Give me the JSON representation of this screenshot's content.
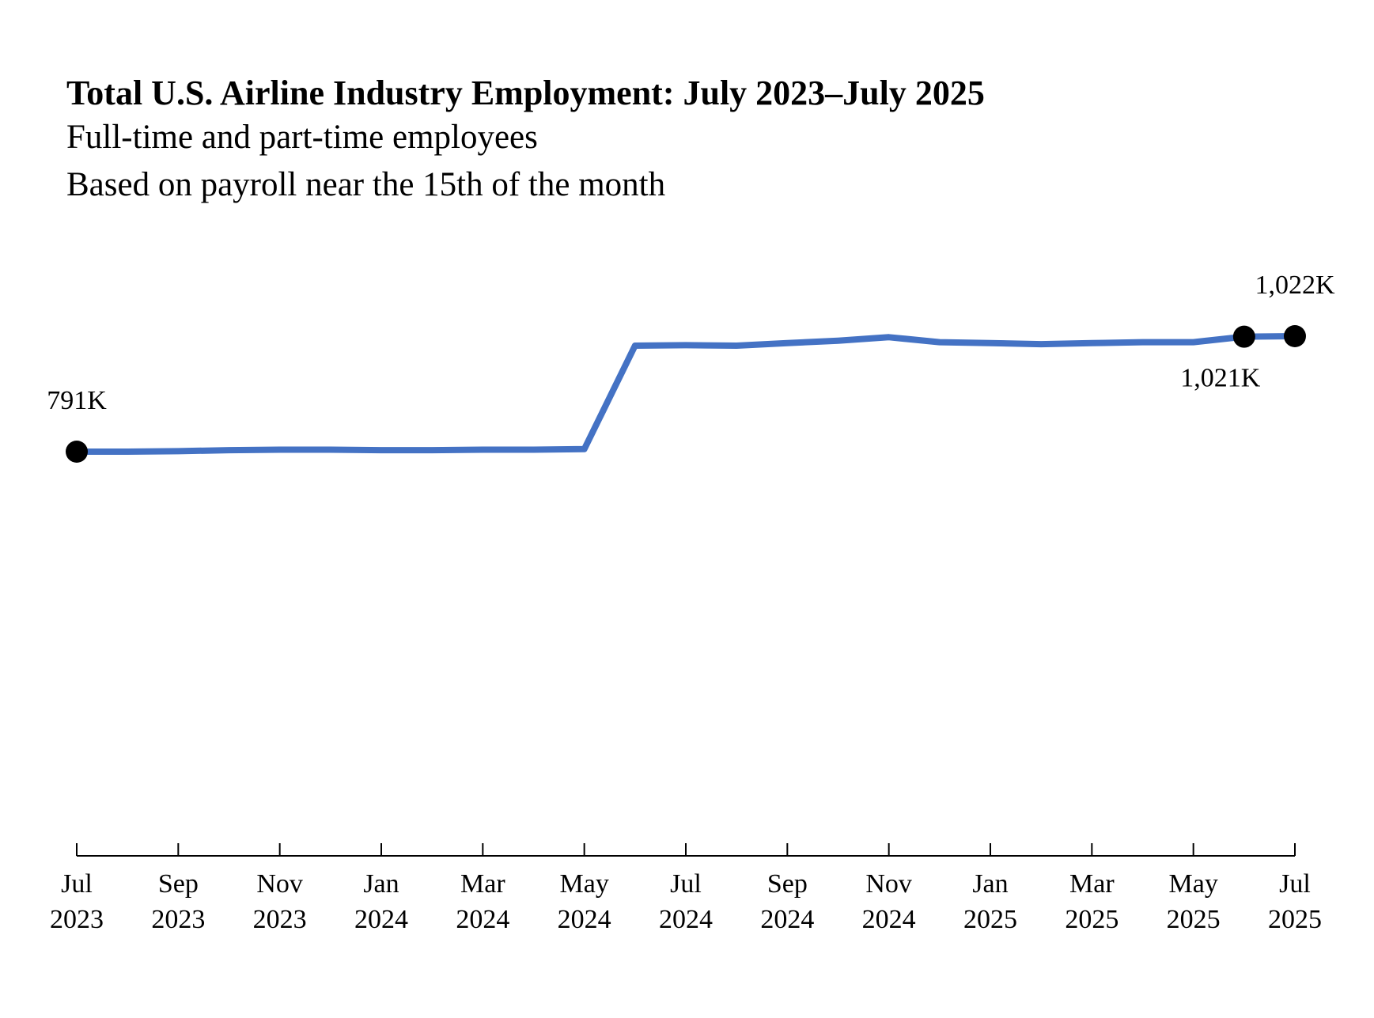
{
  "chart_data": {
    "type": "line",
    "title": "Total U.S. Airline Industry Employment: July 2023–July 2025",
    "subtitles": [
      "Full-time and part-time employees",
      "Based on payroll near the 15th of the month"
    ],
    "xlabel": "",
    "ylabel": "",
    "unit": "thousands of employees",
    "grid": false,
    "legend": "none",
    "line_color": "#4472C4",
    "marker_color": "#000000",
    "ylim": [
      0,
      1100
    ],
    "x": [
      "2023-07",
      "2023-08",
      "2023-09",
      "2023-10",
      "2023-11",
      "2023-12",
      "2024-01",
      "2024-02",
      "2024-03",
      "2024-04",
      "2024-05",
      "2024-06",
      "2024-07",
      "2024-08",
      "2024-09",
      "2024-10",
      "2024-11",
      "2024-12",
      "2025-01",
      "2025-02",
      "2025-03",
      "2025-04",
      "2025-05",
      "2025-06",
      "2025-07"
    ],
    "series": [
      {
        "values": [
          791,
          791,
          792,
          794,
          795,
          795,
          794,
          794,
          795,
          795,
          796,
          1003,
          1004,
          1003,
          1008,
          1013,
          1020,
          1010,
          1008,
          1006,
          1008,
          1010,
          1010,
          1021,
          1022
        ]
      }
    ],
    "x_ticks": [
      {
        "month": "Jul",
        "year": "2023"
      },
      {
        "month": "Sep",
        "year": "2023"
      },
      {
        "month": "Nov",
        "year": "2023"
      },
      {
        "month": "Jan",
        "year": "2024"
      },
      {
        "month": "Mar",
        "year": "2024"
      },
      {
        "month": "May",
        "year": "2024"
      },
      {
        "month": "Jul",
        "year": "2024"
      },
      {
        "month": "Sep",
        "year": "2024"
      },
      {
        "month": "Nov",
        "year": "2024"
      },
      {
        "month": "Jan",
        "year": "2025"
      },
      {
        "month": "Mar",
        "year": "2025"
      },
      {
        "month": "May",
        "year": "2025"
      },
      {
        "month": "Jul",
        "year": "2025"
      }
    ],
    "annotations": [
      {
        "x": "2023-07",
        "text": "791K",
        "position": "above"
      },
      {
        "x": "2025-06",
        "text": "1,021K",
        "position": "below"
      },
      {
        "x": "2025-07",
        "text": "1,022K",
        "position": "above"
      }
    ]
  }
}
